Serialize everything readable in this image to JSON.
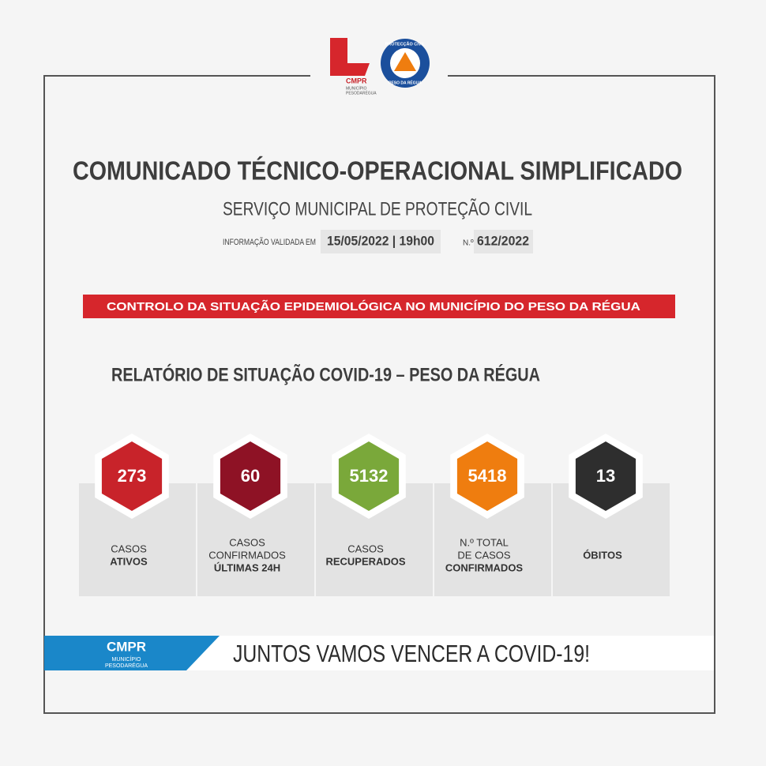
{
  "logos": {
    "left": {
      "brand": "CMPR",
      "line1": "MUNICÍPIO",
      "line2": "PESODARÉGUA"
    },
    "right": {
      "top": "PROTECÇÃO CIVIL",
      "bottom": "PESO DA RÉGUA"
    }
  },
  "header": {
    "title": "COMUNICADO TÉCNICO-OPERACIONAL SIMPLIFICADO",
    "subtitle": "SERVIÇO MUNICIPAL DE PROTEÇÃO CIVIL",
    "validated_label": "INFORMAÇÃO VALIDADA EM",
    "date": "15/05/2022 | 19h00",
    "number_label": "N.º",
    "number": "612/2022"
  },
  "banner": "CONTROLO DA SITUAÇÃO EPIDEMIOLÓGICA NO MUNICÍPIO DO PESO DA RÉGUA",
  "report_title": "RELATÓRIO DE SITUAÇÃO COVID-19 – PESO DA RÉGUA",
  "stats": [
    {
      "value": "273",
      "color": "#c8232a",
      "label": [
        "CASOS"
      ],
      "label_bold": [
        "ATIVOS"
      ]
    },
    {
      "value": "60",
      "color": "#8e1225",
      "label": [
        "CASOS",
        "CONFIRMADOS"
      ],
      "label_bold": [
        "ÚLTIMAS 24H"
      ]
    },
    {
      "value": "5132",
      "color": "#7aa83a",
      "label": [
        "CASOS"
      ],
      "label_bold": [
        "RECUPERADOS"
      ]
    },
    {
      "value": "5418",
      "color": "#ef7d0f",
      "label": [
        "N.º TOTAL",
        "DE CASOS"
      ],
      "label_bold": [
        "CONFIRMADOS"
      ]
    },
    {
      "value": "13",
      "color": "#2e2e2e",
      "label": [],
      "label_bold": [
        "ÓBITOS"
      ]
    }
  ],
  "footer": {
    "brand": "CMPR",
    "line1": "MUNICÍPIO",
    "line2": "PESODARÉGUA",
    "slogan": "JUNTOS VAMOS VENCER A COVID-19!"
  }
}
